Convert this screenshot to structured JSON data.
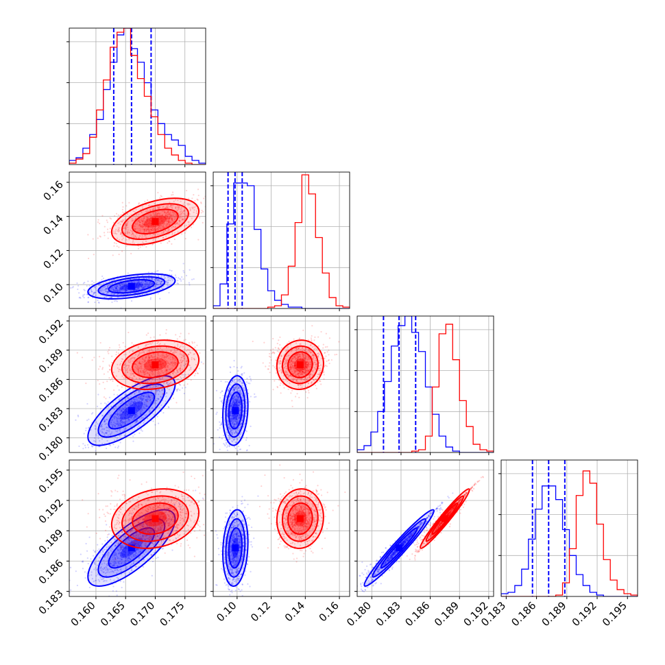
{
  "colors": {
    "series_a": "#0000ff",
    "series_b": "#ff0000",
    "grid": "#b0b0b0",
    "axes": "#000000"
  },
  "chart_data": {
    "type": "scatter",
    "subtype": "corner-plot",
    "title": "",
    "grid": true,
    "legend": "none",
    "parameters": [
      {
        "index": 0,
        "range": [
          0.1555,
          0.1785
        ],
        "ticks": [
          "0.160",
          "0.165",
          "0.170",
          "0.175"
        ]
      },
      {
        "index": 1,
        "range": [
          0.086,
          0.166
        ],
        "ticks": [
          "0.10",
          "0.12",
          "0.14",
          "0.16"
        ]
      },
      {
        "index": 2,
        "range": [
          0.1785,
          0.1925
        ],
        "ticks": [
          "0.180",
          "0.183",
          "0.186",
          "0.189",
          "0.192"
        ]
      },
      {
        "index": 3,
        "range": [
          0.1825,
          0.196
        ],
        "ticks": [
          "0.183",
          "0.186",
          "0.189",
          "0.192",
          "0.195"
        ]
      }
    ],
    "series": [
      {
        "color": "blue",
        "means": [
          0.166,
          0.099,
          0.1828,
          0.1873
        ],
        "sigmas": [
          0.0035,
          0.0035,
          0.0017,
          0.0018
        ],
        "quantiles": [
          [
            0.163,
            0.166,
            0.1693
          ],
          [
            0.0947,
            0.0988,
            0.103
          ],
          [
            0.1812,
            0.1828,
            0.1845
          ],
          [
            0.1856,
            0.1872,
            0.1888
          ]
        ],
        "histograms": [
          [
            0.03,
            0.05,
            0.12,
            0.22,
            0.33,
            0.55,
            0.75,
            0.95,
            1.0,
            0.85,
            0.75,
            0.6,
            0.4,
            0.3,
            0.22,
            0.18,
            0.14,
            0.06,
            0.03,
            0.01
          ],
          [
            0.02,
            0.18,
            0.62,
            0.92,
            0.92,
            0.9,
            0.58,
            0.29,
            0.13,
            0.06,
            0.03,
            0.01,
            0.01,
            0.0,
            0.0,
            0.0,
            0.0,
            0.0,
            0.0,
            0.0
          ],
          [
            0.02,
            0.05,
            0.15,
            0.3,
            0.52,
            0.78,
            0.93,
            1.0,
            0.88,
            0.74,
            0.48,
            0.28,
            0.12,
            0.04,
            0.01,
            0.0,
            0.0,
            0.0,
            0.0,
            0.0
          ],
          [
            0.02,
            0.03,
            0.08,
            0.2,
            0.42,
            0.64,
            0.81,
            0.81,
            0.71,
            0.49,
            0.3,
            0.16,
            0.08,
            0.03,
            0.01,
            0.0,
            0.0,
            0.0,
            0.0,
            0.0
          ]
        ]
      },
      {
        "color": "red",
        "means": [
          0.17,
          0.137,
          0.1875,
          0.1902
        ],
        "sigmas": [
          0.0035,
          0.0065,
          0.0012,
          0.0014
        ],
        "histograms": [
          [
            0.01,
            0.04,
            0.08,
            0.2,
            0.4,
            0.62,
            0.86,
            0.97,
            1.0,
            0.8,
            0.63,
            0.5,
            0.35,
            0.22,
            0.12,
            0.07,
            0.03,
            0.01,
            0.0,
            0.0
          ],
          [
            0.0,
            0.0,
            0.0,
            0.0,
            0.0,
            0.0,
            0.0,
            0.0,
            0.01,
            0.02,
            0.1,
            0.31,
            0.63,
            0.98,
            0.84,
            0.52,
            0.26,
            0.08,
            0.02,
            0.01
          ],
          [
            0.0,
            0.0,
            0.0,
            0.0,
            0.0,
            0.0,
            0.0,
            0.0,
            0.01,
            0.02,
            0.12,
            0.48,
            0.87,
            0.94,
            0.68,
            0.38,
            0.19,
            0.06,
            0.02,
            0.01
          ],
          [
            0.0,
            0.0,
            0.0,
            0.0,
            0.0,
            0.0,
            0.0,
            0.0,
            0.01,
            0.1,
            0.35,
            0.74,
            0.92,
            0.83,
            0.53,
            0.27,
            0.12,
            0.05,
            0.02,
            0.01
          ]
        ]
      }
    ]
  }
}
